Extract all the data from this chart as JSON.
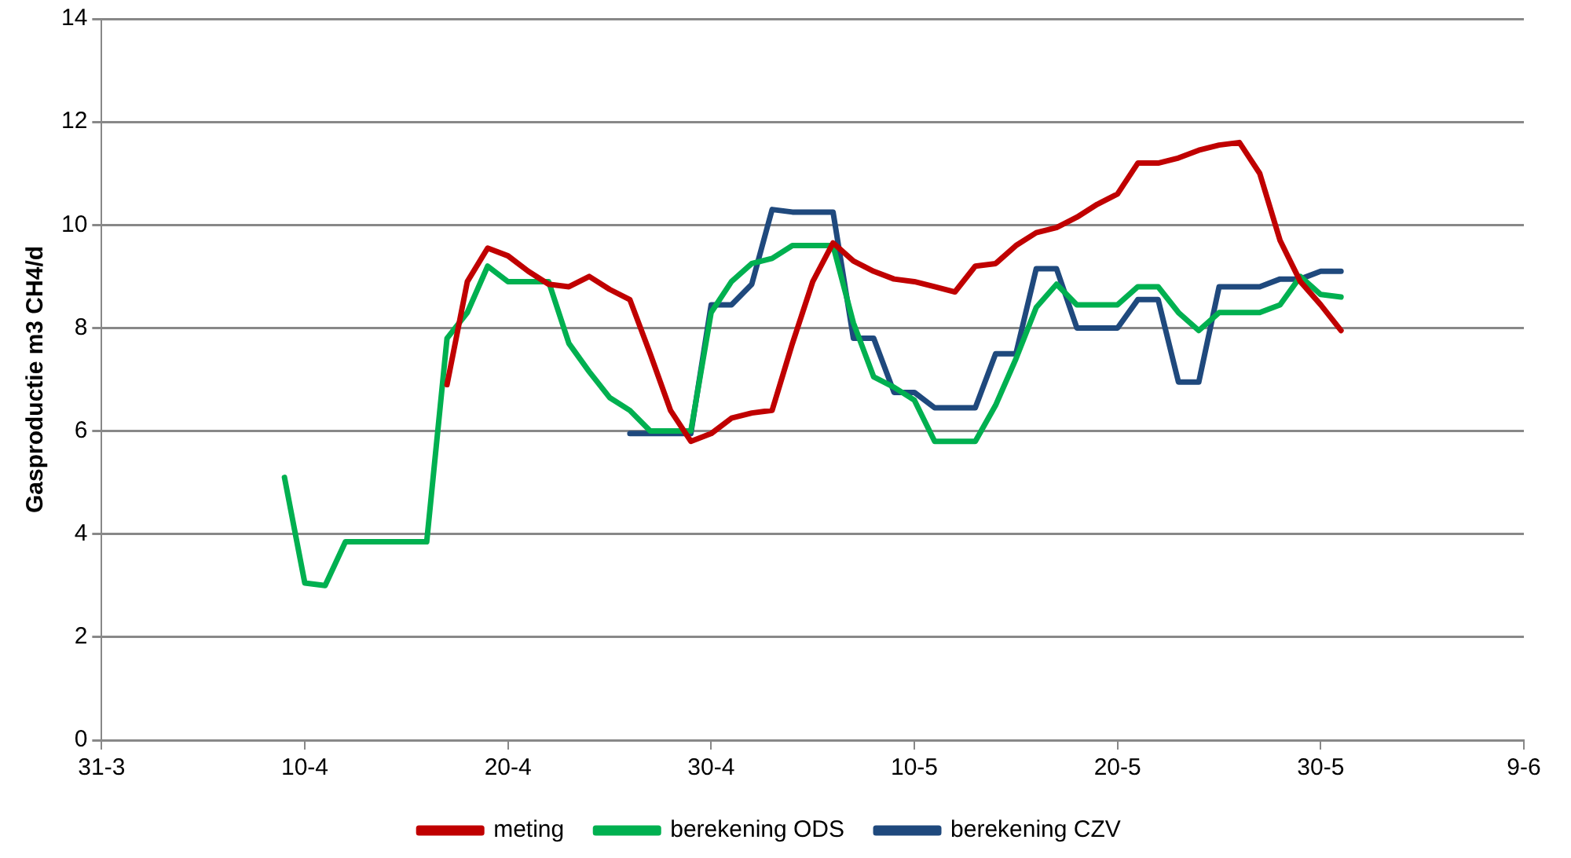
{
  "chart_data": {
    "type": "line",
    "ylabel": "Gasproductie m3 CH4/d",
    "xlim": [
      "--03-31",
      "--06-09"
    ],
    "xticks": [
      {
        "value": "--03-31",
        "label": "31-3"
      },
      {
        "value": "--04-10",
        "label": "10-4"
      },
      {
        "value": "--04-20",
        "label": "20-4"
      },
      {
        "value": "--04-30",
        "label": "30-4"
      },
      {
        "value": "--05-10",
        "label": "10-5"
      },
      {
        "value": "--05-20",
        "label": "20-5"
      },
      {
        "value": "--05-30",
        "label": "30-5"
      },
      {
        "value": "--06-09",
        "label": "9-6"
      }
    ],
    "ylim": [
      0,
      14
    ],
    "yticks": [
      0,
      2,
      4,
      6,
      8,
      10,
      12,
      14
    ],
    "grid": "y",
    "legend": "bottom",
    "marker": "none",
    "line_style": "solid",
    "series": [
      {
        "name": "meting",
        "color": "#c00000",
        "x": [
          "--04-17",
          "--04-18",
          "--04-19",
          "--04-20",
          "--04-21",
          "--04-22",
          "--04-23",
          "--04-24",
          "--04-25",
          "--04-26",
          "--04-27",
          "--04-28",
          "--04-29",
          "--04-30",
          "--05-01",
          "--05-02",
          "--05-03",
          "--05-04",
          "--05-05",
          "--05-06",
          "--05-07",
          "--05-08",
          "--05-09",
          "--05-10",
          "--05-11",
          "--05-12",
          "--05-13",
          "--05-14",
          "--05-15",
          "--05-16",
          "--05-17",
          "--05-18",
          "--05-19",
          "--05-20",
          "--05-21",
          "--05-22",
          "--05-23",
          "--05-24",
          "--05-25",
          "--05-26",
          "--05-27",
          "--05-28",
          "--05-29",
          "--05-30",
          "--05-31"
        ],
        "values": [
          6.9,
          8.9,
          9.55,
          9.4,
          9.1,
          8.85,
          8.8,
          9.0,
          8.75,
          8.55,
          7.5,
          6.4,
          5.8,
          5.95,
          6.25,
          6.35,
          6.4,
          7.7,
          8.9,
          9.65,
          9.3,
          9.1,
          8.95,
          8.9,
          8.8,
          8.7,
          9.2,
          9.25,
          9.6,
          9.85,
          9.95,
          10.15,
          10.4,
          10.6,
          11.2,
          11.2,
          11.3,
          11.45,
          11.55,
          11.6,
          11.0,
          9.7,
          8.9,
          8.45,
          7.95
        ]
      },
      {
        "name": "berekening ODS",
        "color": "#00b050",
        "x": [
          "--04-09",
          "--04-10",
          "--04-11",
          "--04-12",
          "--04-13",
          "--04-14",
          "--04-15",
          "--04-16",
          "--04-17",
          "--04-18",
          "--04-19",
          "--04-20",
          "--04-21",
          "--04-22",
          "--04-23",
          "--04-24",
          "--04-25",
          "--04-26",
          "--04-27",
          "--04-28",
          "--04-29",
          "--04-30",
          "--05-01",
          "--05-02",
          "--05-03",
          "--05-04",
          "--05-05",
          "--05-06",
          "--05-07",
          "--05-08",
          "--05-09",
          "--05-10",
          "--05-11",
          "--05-12",
          "--05-13",
          "--05-14",
          "--05-15",
          "--05-16",
          "--05-17",
          "--05-18",
          "--05-19",
          "--05-20",
          "--05-21",
          "--05-22",
          "--05-23",
          "--05-24",
          "--05-25",
          "--05-26",
          "--05-27",
          "--05-28",
          "--05-29",
          "--05-30",
          "--05-31"
        ],
        "values": [
          5.1,
          3.05,
          3.0,
          3.85,
          3.85,
          3.85,
          3.85,
          3.85,
          7.8,
          8.3,
          9.2,
          8.9,
          8.9,
          8.9,
          7.7,
          7.15,
          6.65,
          6.4,
          6.0,
          6.0,
          6.0,
          8.3,
          8.9,
          9.25,
          9.35,
          9.6,
          9.6,
          9.6,
          8.1,
          7.05,
          6.85,
          6.6,
          5.8,
          5.8,
          5.8,
          6.5,
          7.4,
          8.4,
          8.85,
          8.45,
          8.45,
          8.45,
          8.8,
          8.8,
          8.3,
          7.95,
          8.3,
          8.3,
          8.3,
          8.45,
          9.0,
          8.65,
          8.6
        ]
      },
      {
        "name": "berekening CZV",
        "color": "#1f497d",
        "x": [
          "--04-26",
          "--04-27",
          "--04-28",
          "--04-29",
          "--04-30",
          "--05-01",
          "--05-02",
          "--05-03",
          "--05-04",
          "--05-05",
          "--05-06",
          "--05-07",
          "--05-08",
          "--05-09",
          "--05-10",
          "--05-11",
          "--05-12",
          "--05-13",
          "--05-14",
          "--05-15",
          "--05-16",
          "--05-17",
          "--05-18",
          "--05-19",
          "--05-20",
          "--05-21",
          "--05-22",
          "--05-23",
          "--05-24",
          "--05-25",
          "--05-26",
          "--05-27",
          "--05-28",
          "--05-29",
          "--05-30",
          "--05-31"
        ],
        "values": [
          5.95,
          5.95,
          5.95,
          5.95,
          8.45,
          8.45,
          8.85,
          10.3,
          10.25,
          10.25,
          10.25,
          7.8,
          7.8,
          6.75,
          6.75,
          6.45,
          6.45,
          6.45,
          7.5,
          7.5,
          9.15,
          9.15,
          8.0,
          8.0,
          8.0,
          8.55,
          8.55,
          6.95,
          6.95,
          8.8,
          8.8,
          8.8,
          8.95,
          8.95,
          9.1,
          9.1
        ]
      }
    ]
  }
}
